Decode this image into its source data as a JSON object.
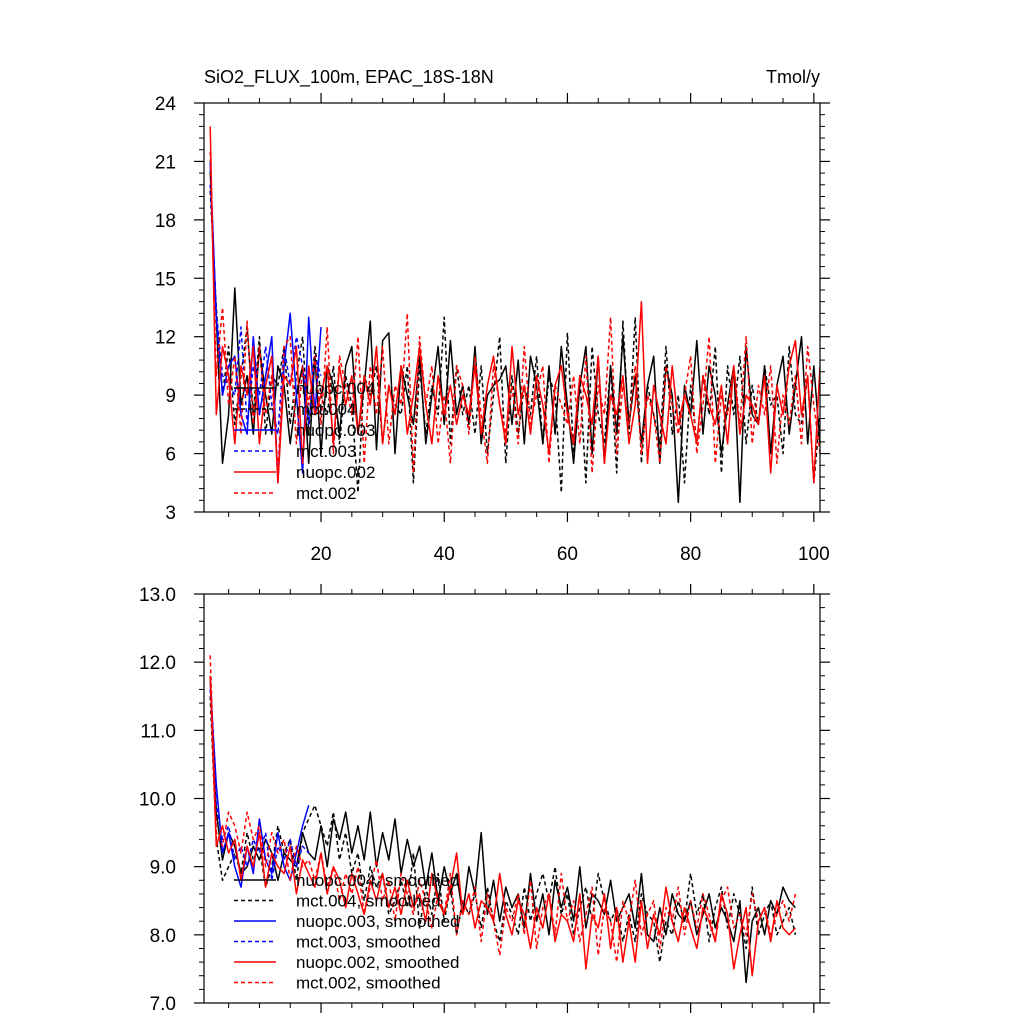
{
  "chart_data": [
    {
      "type": "line",
      "title": "SiO2_FLUX_100m, EPAC_18S-18N",
      "units": "Tmol/y",
      "xlim": [
        1,
        101
      ],
      "ylim": [
        3,
        24
      ],
      "xticks": [
        20,
        40,
        60,
        80,
        100
      ],
      "yticks": [
        3,
        6,
        9,
        12,
        15,
        18,
        21,
        24
      ],
      "xtick_labels": [
        "20",
        "40",
        "60",
        "80",
        "100"
      ],
      "ytick_labels": [
        "3",
        "6",
        "9",
        "12",
        "15",
        "18",
        "21",
        "24"
      ],
      "legend_position": "lower-left",
      "series": [
        {
          "name": "nuopc.004",
          "color": "#000000",
          "dash": "solid",
          "x0": 2,
          "values": [
            20.5,
            13.0,
            5.5,
            8.0,
            14.5,
            8.5,
            10.0,
            7.0,
            11.5,
            9.0,
            7.0,
            10.5,
            9.5,
            6.5,
            9.0,
            10.5,
            5.5,
            11.0,
            6.0,
            10.5,
            9.5,
            7.0,
            10.5,
            11.5,
            7.0,
            9.5,
            12.8,
            6.2,
            11.8,
            12.2,
            6.0,
            10.5,
            9.0,
            7.5,
            11.0,
            6.5,
            9.0,
            11.5,
            7.5,
            11.8,
            8.0,
            9.5,
            7.5,
            11.5,
            6.5,
            9.0,
            9.5,
            9.8,
            10.5,
            7.5,
            10.8,
            6.5,
            11.0,
            9.5,
            6.5,
            10.5,
            7.0,
            11.5,
            8.5,
            5.5,
            9.5,
            11.5,
            6.0,
            11.0,
            5.5,
            10.5,
            7.0,
            12.0,
            7.5,
            10.0,
            6.5,
            9.5,
            11.0,
            5.5,
            10.5,
            9.0,
            3.5,
            9.5,
            8.0,
            11.8,
            7.0,
            10.5,
            9.0,
            6.0,
            8.5,
            10.5,
            3.5,
            11.5,
            8.0,
            7.5,
            10.5,
            6.0,
            9.5,
            11.0,
            7.0,
            9.5,
            12.0,
            6.5,
            10.5,
            6.5
          ]
        },
        {
          "name": "mct.004",
          "color": "#000000",
          "dash": "dashed",
          "x0": 2,
          "values": [
            19.5,
            13.5,
            9.0,
            11.5,
            7.5,
            10.0,
            12.5,
            8.0,
            12.0,
            7.0,
            10.0,
            9.5,
            11.5,
            7.5,
            10.0,
            12.0,
            7.0,
            11.5,
            9.0,
            8.0,
            10.5,
            6.5,
            10.0,
            8.5,
            4.0,
            10.0,
            9.0,
            10.5,
            6.5,
            9.5,
            8.5,
            8.0,
            10.5,
            4.5,
            10.5,
            7.0,
            9.5,
            8.0,
            13.0,
            6.5,
            10.5,
            8.0,
            9.5,
            7.0,
            10.5,
            6.0,
            9.0,
            12.0,
            5.5,
            10.0,
            7.0,
            9.5,
            8.0,
            11.0,
            6.5,
            10.0,
            9.0,
            4.0,
            12.2,
            6.0,
            10.0,
            4.5,
            11.5,
            8.0,
            6.5,
            10.5,
            5.0,
            12.8,
            7.0,
            13.0,
            5.5,
            9.5,
            8.0,
            6.5,
            11.5,
            7.0,
            9.0,
            4.5,
            9.5,
            6.5,
            10.0,
            8.0,
            11.5,
            5.0,
            10.5,
            8.0,
            11.0,
            6.5,
            9.5,
            7.5,
            10.5,
            8.5,
            9.0,
            6.0,
            11.5,
            8.0,
            7.5,
            10.0,
            4.5,
            8.0
          ]
        },
        {
          "name": "nuopc.003",
          "color": "#0000ff",
          "dash": "solid",
          "x0": 2,
          "values": [
            21.0,
            13.0,
            9.0,
            10.5,
            11.0,
            8.0,
            7.0,
            12.0,
            8.0,
            10.0,
            12.0,
            4.5,
            10.5,
            13.2,
            9.0,
            5.0,
            13.0,
            8.0,
            12.5
          ]
        },
        {
          "name": "mct.003",
          "color": "#0000ff",
          "dash": "dashed",
          "x0": 2,
          "values": [
            19.8,
            13.2,
            10.0,
            9.5,
            9.0,
            12.5,
            7.5,
            10.5,
            9.0,
            11.5,
            8.5,
            7.0,
            11.5,
            9.5,
            12.0,
            10.5,
            7.5,
            11.0,
            10.0
          ]
        },
        {
          "name": "nuopc.002",
          "color": "#ff0000",
          "dash": "solid",
          "x0": 2,
          "values": [
            22.8,
            8.0,
            11.5,
            10.0,
            6.5,
            10.5,
            9.0,
            11.5,
            6.5,
            9.5,
            11.0,
            4.5,
            10.0,
            9.5,
            11.5,
            5.5,
            10.5,
            8.0,
            9.0,
            10.5,
            6.5,
            10.5,
            8.5,
            10.0,
            7.0,
            10.0,
            8.5,
            11.5,
            6.5,
            9.5,
            8.0,
            10.5,
            7.0,
            9.0,
            11.5,
            8.5,
            6.5,
            10.0,
            8.0,
            9.5,
            7.5,
            9.0,
            8.0,
            10.5,
            7.0,
            9.5,
            11.0,
            8.5,
            6.5,
            11.5,
            8.0,
            9.5,
            7.0,
            10.0,
            8.5,
            6.0,
            9.5,
            10.5,
            8.0,
            6.5,
            10.0,
            9.0,
            7.5,
            11.0,
            5.5,
            9.0,
            8.0,
            10.0,
            6.5,
            8.5,
            13.8,
            5.5,
            9.5,
            8.0,
            6.5,
            10.5,
            7.5,
            9.0,
            8.0,
            6.5,
            10.0,
            8.5,
            7.5,
            9.5,
            6.5,
            10.5,
            7.0,
            9.0,
            8.5,
            7.5,
            10.0,
            5.0,
            9.5,
            8.0,
            10.5,
            11.8,
            8.0,
            10.0,
            4.5,
            10.5
          ]
        },
        {
          "name": "mct.002",
          "color": "#ff0000",
          "dash": "dashed",
          "x0": 2,
          "values": [
            21.5,
            10.0,
            13.5,
            8.5,
            11.0,
            7.0,
            12.8,
            7.5,
            11.5,
            8.0,
            10.0,
            5.0,
            11.5,
            12.0,
            6.5,
            10.5,
            8.5,
            11.0,
            7.5,
            12.5,
            6.0,
            11.0,
            9.5,
            8.0,
            12.0,
            5.5,
            10.5,
            8.0,
            11.5,
            6.5,
            9.5,
            8.5,
            13.2,
            5.0,
            12.0,
            8.5,
            10.5,
            6.5,
            9.0,
            5.5,
            10.5,
            9.5,
            7.0,
            11.0,
            8.0,
            5.5,
            10.5,
            8.5,
            7.0,
            9.5,
            6.5,
            11.5,
            7.5,
            9.0,
            10.5,
            5.5,
            9.5,
            8.5,
            7.5,
            10.0,
            6.5,
            11.0,
            5.0,
            9.5,
            8.0,
            13.0,
            6.0,
            9.5,
            7.5,
            10.5,
            6.0,
            9.0,
            8.0,
            5.5,
            10.5,
            8.5,
            7.0,
            9.0,
            11.0,
            6.0,
            8.5,
            12.0,
            5.5,
            9.0,
            8.0,
            10.5,
            7.5,
            12.0,
            6.5,
            9.5,
            8.0,
            10.5,
            5.5,
            9.0,
            7.5,
            10.0,
            6.5,
            11.5,
            8.5,
            6.0
          ]
        }
      ],
      "legend": [
        {
          "label": "nuopc.004",
          "color": "#000000",
          "dash": "solid"
        },
        {
          "label": "mct.004",
          "color": "#000000",
          "dash": "dashed"
        },
        {
          "label": "nuopc.003",
          "color": "#0000ff",
          "dash": "solid"
        },
        {
          "label": "mct.003",
          "color": "#0000ff",
          "dash": "dashed"
        },
        {
          "label": "nuopc.002",
          "color": "#ff0000",
          "dash": "solid"
        },
        {
          "label": "mct.002",
          "color": "#ff0000",
          "dash": "dashed"
        }
      ]
    },
    {
      "type": "line",
      "title": "",
      "xlim": [
        1,
        101
      ],
      "ylim": [
        7.0,
        13.0
      ],
      "xticks": [
        20,
        40,
        60,
        80,
        100
      ],
      "yticks": [
        7.0,
        8.0,
        9.0,
        10.0,
        11.0,
        12.0,
        13.0
      ],
      "xtick_labels": [],
      "ytick_labels": [
        "7.0",
        "8.0",
        "9.0",
        "10.0",
        "11.0",
        "12.0",
        "13.0"
      ],
      "legend_position": "lower-left",
      "series": [
        {
          "name": "nuopc.004, smoothed",
          "color": "#000000",
          "dash": "solid",
          "x0": 2,
          "values": [
            11.8,
            9.8,
            9.1,
            9.5,
            9.3,
            8.9,
            9.0,
            9.3,
            9.1,
            9.4,
            9.2,
            8.8,
            9.2,
            9.1,
            9.0,
            9.5,
            9.2,
            9.1,
            9.6,
            9.0,
            9.7,
            9.4,
            9.8,
            9.2,
            9.6,
            9.1,
            9.8,
            9.0,
            9.5,
            9.1,
            9.7,
            8.9,
            9.4,
            9.0,
            9.3,
            8.7,
            9.2,
            8.5,
            9.0,
            8.6,
            8.9,
            8.3,
            9.0,
            8.6,
            9.5,
            8.3,
            8.8,
            8.2,
            8.7,
            8.4,
            8.6,
            8.1,
            8.9,
            8.2,
            8.6,
            8.0,
            8.8,
            8.4,
            8.7,
            8.2,
            9.0,
            8.1,
            8.6,
            8.5,
            8.3,
            8.8,
            8.2,
            8.4,
            8.6,
            8.1,
            8.9,
            8.0,
            7.9,
            8.4,
            8.0,
            8.6,
            8.3,
            8.2,
            8.5,
            8.0,
            8.3,
            8.6,
            8.1,
            8.4,
            8.2,
            7.9,
            8.5,
            7.3,
            8.2,
            8.4,
            8.0,
            8.5,
            8.3,
            8.7,
            8.5,
            8.4
          ]
        },
        {
          "name": "mct.004, smoothed",
          "color": "#000000",
          "dash": "dashed",
          "x0": 2,
          "values": [
            11.5,
            9.4,
            8.8,
            9.0,
            9.2,
            8.9,
            9.5,
            9.1,
            9.3,
            8.7,
            9.0,
            9.6,
            9.2,
            9.4,
            8.8,
            9.5,
            9.7,
            9.9,
            9.6,
            9.3,
            9.8,
            9.1,
            9.5,
            8.9,
            9.2,
            8.5,
            9.0,
            8.7,
            8.9,
            8.3,
            8.5,
            8.8,
            8.4,
            9.2,
            8.1,
            8.7,
            8.3,
            8.9,
            8.2,
            8.7,
            8.0,
            8.5,
            8.3,
            8.6,
            8.1,
            8.7,
            8.2,
            7.9,
            8.5,
            8.3,
            8.0,
            8.7,
            8.2,
            8.6,
            8.9,
            8.5,
            9.0,
            8.3,
            8.6,
            8.0,
            8.4,
            8.7,
            8.2,
            8.9,
            8.5,
            8.2,
            8.4,
            7.9,
            8.3,
            7.9,
            8.6,
            8.3,
            8.2,
            7.6,
            8.2,
            8.0,
            8.5,
            8.2,
            8.9,
            8.3,
            8.6,
            7.9,
            8.4,
            8.7,
            8.1,
            8.6,
            8.3,
            7.8,
            8.7,
            8.0,
            8.3,
            8.5,
            8.0,
            8.2,
            8.4,
            8.0
          ]
        },
        {
          "name": "nuopc.003, smoothed",
          "color": "#0000ff",
          "dash": "solid",
          "x0": 2,
          "values": [
            11.7,
            10.2,
            9.2,
            9.5,
            9.0,
            8.7,
            9.3,
            8.9,
            9.7,
            9.1,
            8.9,
            9.5,
            9.0,
            8.8,
            9.2,
            9.6,
            9.9
          ]
        },
        {
          "name": "mct.003, smoothed",
          "color": "#0000ff",
          "dash": "dashed",
          "x0": 2,
          "values": [
            11.6,
            9.9,
            9.4,
            9.6,
            9.1,
            9.3,
            9.0,
            9.4,
            9.2,
            9.5,
            8.8,
            9.3,
            9.1,
            9.4,
            9.0,
            9.3,
            9.2
          ]
        },
        {
          "name": "nuopc.002, smoothed",
          "color": "#ff0000",
          "dash": "solid",
          "x0": 2,
          "values": [
            11.8,
            9.3,
            9.6,
            9.2,
            9.4,
            8.8,
            9.3,
            9.0,
            9.5,
            8.7,
            9.2,
            9.0,
            8.9,
            9.3,
            8.6,
            9.1,
            8.9,
            8.7,
            9.2,
            8.6,
            9.0,
            8.8,
            8.4,
            8.9,
            8.6,
            8.3,
            8.8,
            8.5,
            8.9,
            8.4,
            8.7,
            8.3,
            8.8,
            8.4,
            8.6,
            8.2,
            8.9,
            8.5,
            8.3,
            8.7,
            9.2,
            8.3,
            8.6,
            8.1,
            8.5,
            8.4,
            8.2,
            8.9,
            8.3,
            8.0,
            8.5,
            8.3,
            7.8,
            8.4,
            8.1,
            8.6,
            7.9,
            8.3,
            8.2,
            7.9,
            8.6,
            7.5,
            8.3,
            8.1,
            8.6,
            7.8,
            8.4,
            7.6,
            8.2,
            7.6,
            8.5,
            7.8,
            8.3,
            8.0,
            8.7,
            8.2,
            7.9,
            8.4,
            8.1,
            7.8,
            8.4,
            8.2,
            7.9,
            8.6,
            8.3,
            7.5,
            8.0,
            8.4,
            7.4,
            8.2,
            8.4,
            7.9,
            8.5,
            8.1,
            8.0,
            8.1
          ]
        },
        {
          "name": "mct.002, smoothed",
          "color": "#ff0000",
          "dash": "dashed",
          "x0": 2,
          "values": [
            12.1,
            9.5,
            9.3,
            9.8,
            9.6,
            9.2,
            9.8,
            9.4,
            9.6,
            9.0,
            9.5,
            9.2,
            9.4,
            8.8,
            9.3,
            9.0,
            9.1,
            8.8,
            9.2,
            8.7,
            9.0,
            8.5,
            8.9,
            8.6,
            9.0,
            8.3,
            8.7,
            9.1,
            8.5,
            8.8,
            8.2,
            8.9,
            8.6,
            8.3,
            8.8,
            8.5,
            8.1,
            8.6,
            8.3,
            8.9,
            8.0,
            8.5,
            8.3,
            8.7,
            7.9,
            8.6,
            8.2,
            7.7,
            8.4,
            8.2,
            8.6,
            8.0,
            8.8,
            7.8,
            8.4,
            8.6,
            8.0,
            8.9,
            8.2,
            8.5,
            7.9,
            8.3,
            8.7,
            7.7,
            8.4,
            8.2,
            7.6,
            8.5,
            8.2,
            8.8,
            8.0,
            8.3,
            8.5,
            7.8,
            8.4,
            8.2,
            8.7,
            8.0,
            8.5,
            8.1,
            8.6,
            8.3,
            7.9,
            8.5,
            8.7,
            8.1,
            8.3,
            8.0,
            8.6,
            8.2,
            8.4,
            8.0,
            8.3,
            8.5,
            8.2,
            8.6
          ]
        }
      ],
      "legend": [
        {
          "label": "nuopc.004, smoothed",
          "color": "#000000",
          "dash": "solid"
        },
        {
          "label": "mct.004, smoothed",
          "color": "#000000",
          "dash": "dashed"
        },
        {
          "label": "nuopc.003, smoothed",
          "color": "#0000ff",
          "dash": "solid"
        },
        {
          "label": "mct.003, smoothed",
          "color": "#0000ff",
          "dash": "dashed"
        },
        {
          "label": "nuopc.002, smoothed",
          "color": "#ff0000",
          "dash": "solid"
        },
        {
          "label": "mct.002, smoothed",
          "color": "#ff0000",
          "dash": "dashed"
        }
      ]
    }
  ]
}
